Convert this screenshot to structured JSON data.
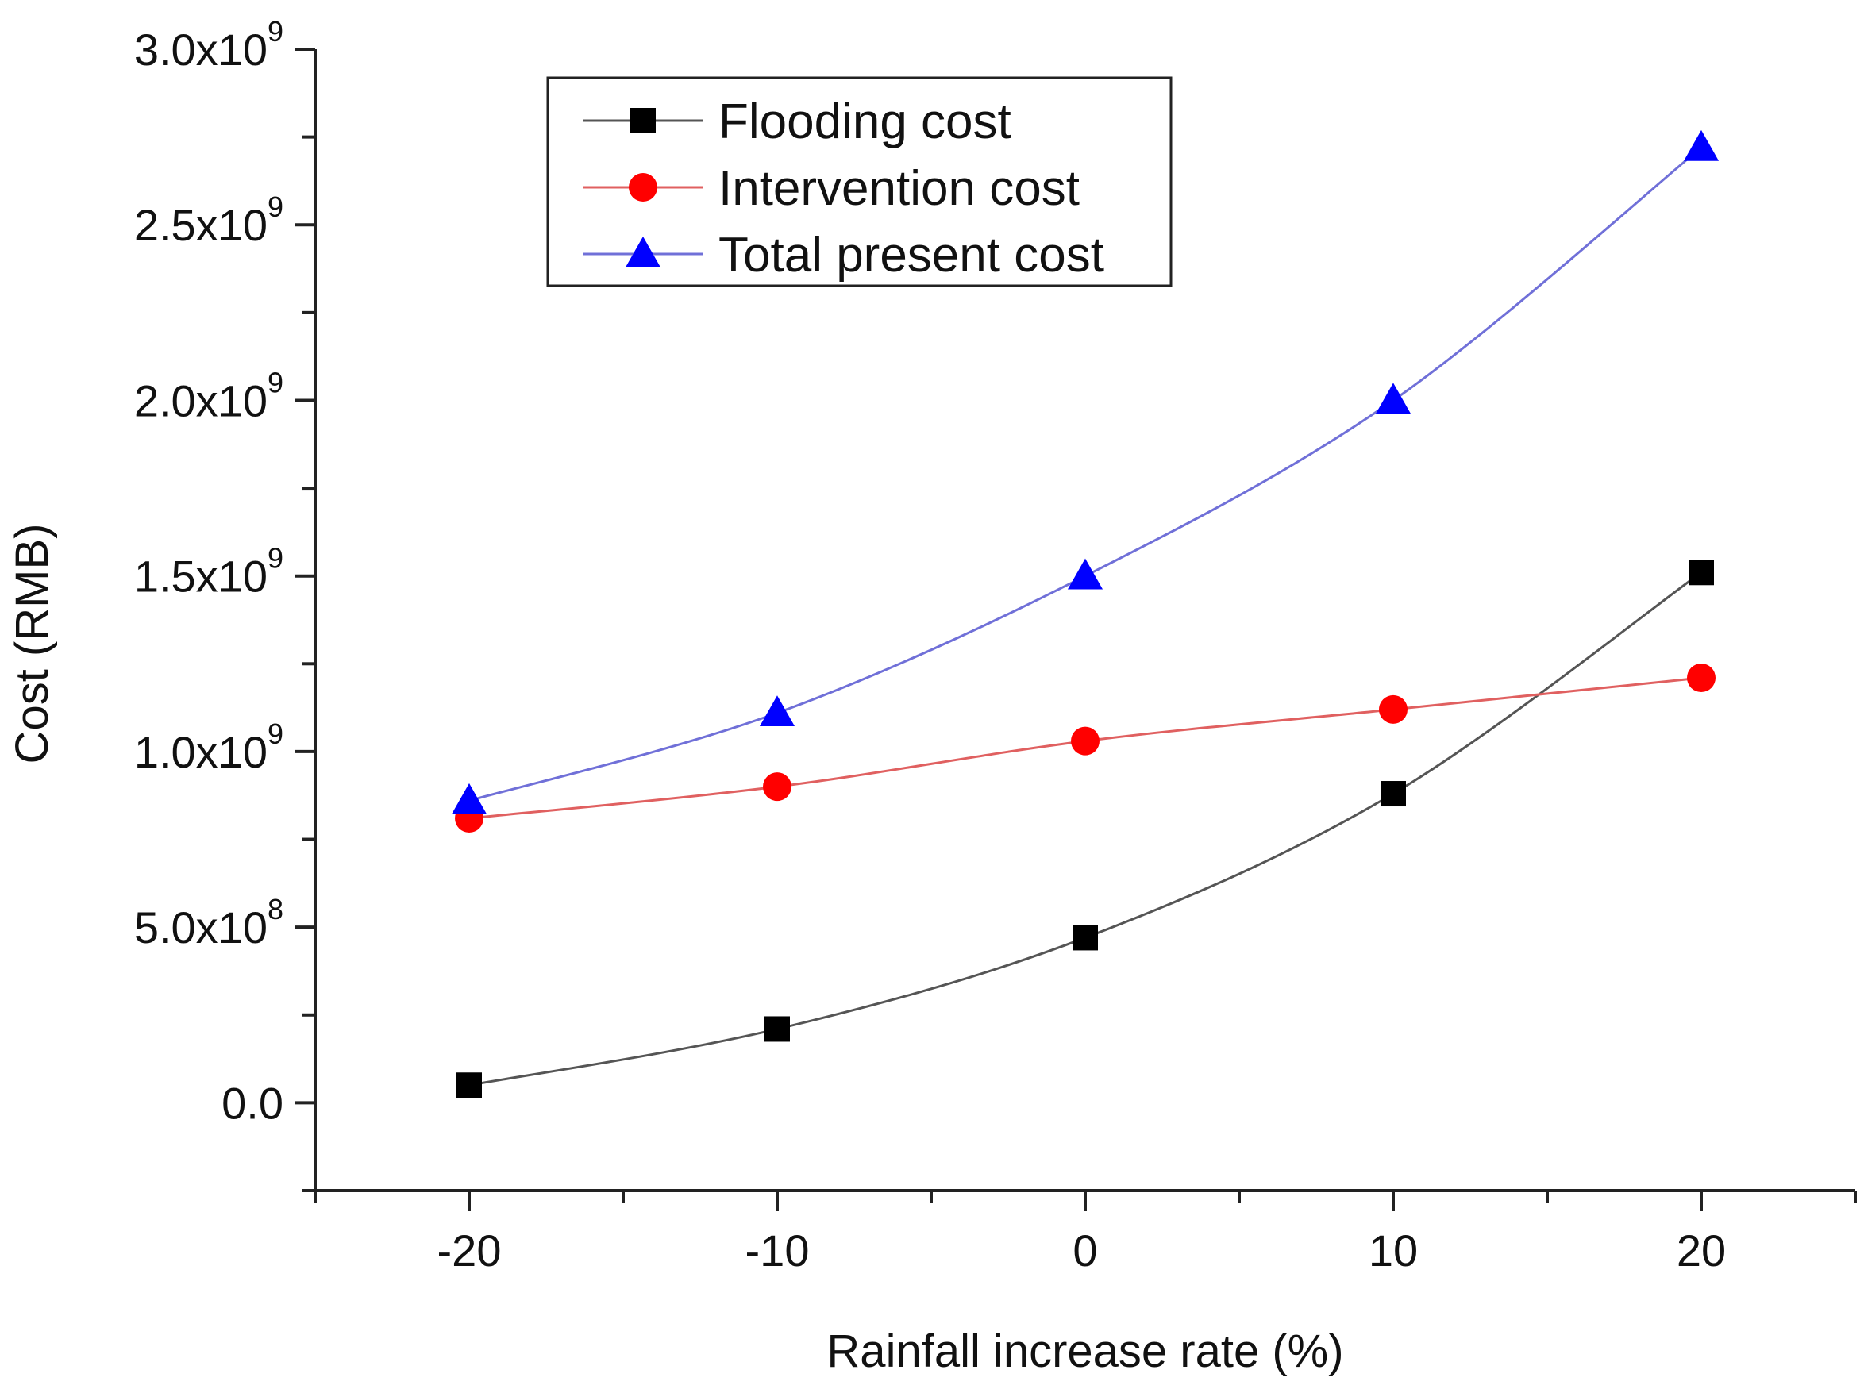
{
  "chart_data": {
    "type": "line",
    "title": "",
    "xlabel": "Rainfall increase rate (%)",
    "ylabel": "Cost (RMB)",
    "x": [
      -20,
      -10,
      0,
      10,
      20
    ],
    "xlim": [
      -25,
      25
    ],
    "ylim": [
      -250000000,
      3000000000
    ],
    "x_ticks": [
      -20,
      -10,
      0,
      10,
      20
    ],
    "x_tick_labels": [
      "-20",
      "-10",
      "0",
      "10",
      "20"
    ],
    "y_ticks": [
      0,
      500000000,
      1000000000,
      1500000000,
      2000000000,
      2500000000,
      3000000000
    ],
    "y_tick_labels": [
      {
        "mantissa": "0.0",
        "times": "",
        "exp": ""
      },
      {
        "mantissa": "5.0",
        "times": "x10",
        "exp": "8"
      },
      {
        "mantissa": "1.0",
        "times": "x10",
        "exp": "9"
      },
      {
        "mantissa": "1.5",
        "times": "x10",
        "exp": "9"
      },
      {
        "mantissa": "2.0",
        "times": "x10",
        "exp": "9"
      },
      {
        "mantissa": "2.5",
        "times": "x10",
        "exp": "9"
      },
      {
        "mantissa": "3.0",
        "times": "x10",
        "exp": "9"
      }
    ],
    "grid": false,
    "legend_position": "top-left",
    "series": [
      {
        "name": "Flooding cost",
        "marker": "square",
        "color": "#000000",
        "line_color": "#555555",
        "values": [
          50000000,
          210000000,
          470000000,
          880000000,
          1510000000
        ]
      },
      {
        "name": "Intervention cost",
        "marker": "circle",
        "color": "#ff0000",
        "line_color": "#e06060",
        "values": [
          810000000,
          900000000,
          1030000000,
          1120000000,
          1210000000
        ]
      },
      {
        "name": "Total present cost",
        "marker": "triangle",
        "color": "#0000ff",
        "line_color": "#7070d8",
        "values": [
          860000000,
          1110000000,
          1500000000,
          2000000000,
          2720000000
        ]
      }
    ]
  }
}
